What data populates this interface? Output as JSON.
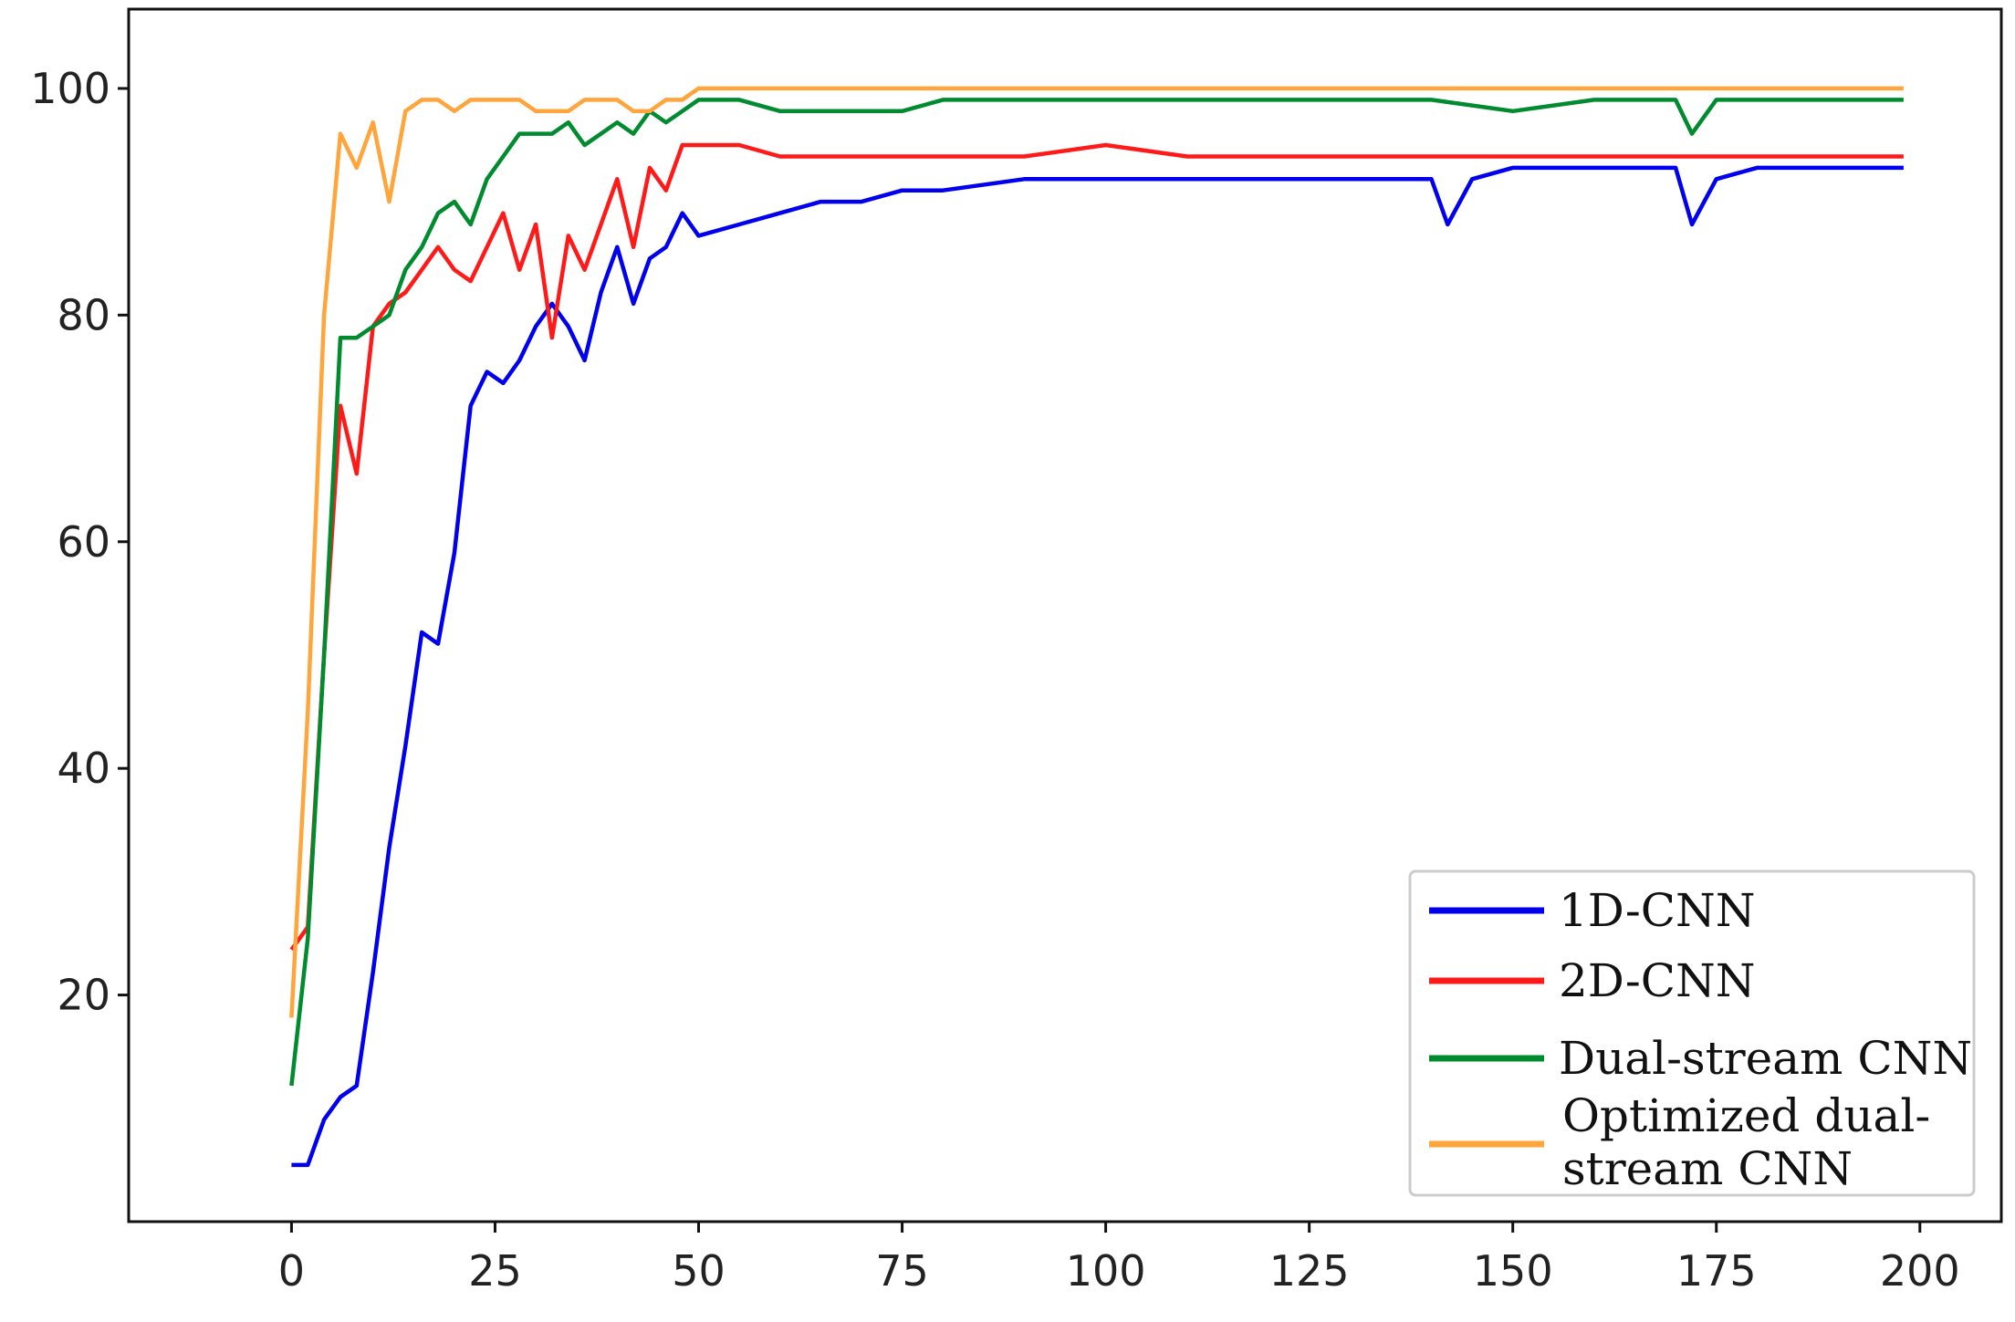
{
  "chart_data": {
    "type": "line",
    "title": "",
    "xlabel": "",
    "ylabel": "",
    "xlim": [
      -20,
      210
    ],
    "ylim": [
      0,
      107
    ],
    "xticks": [
      0,
      25,
      50,
      75,
      100,
      125,
      150,
      175,
      200
    ],
    "yticks": [
      20,
      40,
      60,
      80,
      100
    ],
    "grid": false,
    "legend_position": "lower-right",
    "series": [
      {
        "name": "1D-CNN",
        "color": "#0000ee",
        "x": [
          0,
          2,
          4,
          6,
          8,
          10,
          12,
          14,
          16,
          18,
          20,
          22,
          24,
          26,
          28,
          30,
          32,
          34,
          36,
          38,
          40,
          42,
          44,
          46,
          48,
          50,
          55,
          60,
          65,
          70,
          75,
          80,
          90,
          100,
          110,
          120,
          130,
          140,
          142,
          145,
          150,
          160,
          170,
          172,
          175,
          180,
          190,
          198
        ],
        "y": [
          5,
          5,
          9,
          11,
          12,
          22,
          33,
          42,
          52,
          51,
          59,
          72,
          75,
          74,
          76,
          79,
          81,
          79,
          76,
          82,
          86,
          81,
          85,
          86,
          89,
          87,
          88,
          89,
          90,
          90,
          91,
          91,
          92,
          92,
          92,
          92,
          92,
          92,
          88,
          92,
          93,
          93,
          93,
          88,
          92,
          93,
          93,
          93
        ]
      },
      {
        "name": "2D-CNN",
        "color": "#ff1a1a",
        "x": [
          0,
          2,
          4,
          6,
          8,
          10,
          12,
          14,
          16,
          18,
          20,
          22,
          24,
          26,
          28,
          30,
          32,
          34,
          36,
          38,
          40,
          42,
          44,
          46,
          48,
          50,
          55,
          60,
          65,
          70,
          75,
          80,
          90,
          100,
          110,
          120,
          130,
          140,
          150,
          160,
          170,
          180,
          190,
          198
        ],
        "y": [
          24,
          26,
          50,
          72,
          66,
          79,
          81,
          82,
          84,
          86,
          84,
          83,
          86,
          89,
          84,
          88,
          78,
          87,
          84,
          88,
          92,
          86,
          93,
          91,
          95,
          95,
          95,
          94,
          94,
          94,
          94,
          94,
          94,
          95,
          94,
          94,
          94,
          94,
          94,
          94,
          94,
          94,
          94,
          94
        ]
      },
      {
        "name": "Dual-stream CNN",
        "color": "#008c2e",
        "x": [
          0,
          2,
          4,
          6,
          8,
          10,
          12,
          14,
          16,
          18,
          20,
          22,
          24,
          26,
          28,
          30,
          32,
          34,
          36,
          38,
          40,
          42,
          44,
          46,
          48,
          50,
          55,
          60,
          65,
          70,
          75,
          80,
          90,
          100,
          110,
          120,
          130,
          140,
          150,
          160,
          170,
          172,
          175,
          180,
          190,
          198
        ],
        "y": [
          12,
          25,
          50,
          78,
          78,
          79,
          80,
          84,
          86,
          89,
          90,
          88,
          92,
          94,
          96,
          96,
          96,
          97,
          95,
          96,
          97,
          96,
          98,
          97,
          98,
          99,
          99,
          98,
          98,
          98,
          98,
          99,
          99,
          99,
          99,
          99,
          99,
          99,
          98,
          99,
          99,
          96,
          99,
          99,
          99,
          99
        ]
      },
      {
        "name": "Optimized dual-stream CNN",
        "color": "#ffa53c",
        "x": [
          0,
          2,
          4,
          6,
          8,
          10,
          12,
          14,
          16,
          18,
          20,
          22,
          24,
          26,
          28,
          30,
          32,
          34,
          36,
          38,
          40,
          42,
          44,
          46,
          48,
          50,
          55,
          60,
          65,
          70,
          75,
          80,
          90,
          100,
          110,
          120,
          130,
          140,
          150,
          160,
          170,
          180,
          190,
          198
        ],
        "y": [
          18,
          45,
          80,
          96,
          93,
          97,
          90,
          98,
          99,
          99,
          98,
          99,
          99,
          99,
          99,
          98,
          98,
          98,
          99,
          99,
          99,
          98,
          98,
          99,
          99,
          100,
          100,
          100,
          100,
          100,
          100,
          100,
          100,
          100,
          100,
          100,
          100,
          100,
          100,
          100,
          100,
          100,
          100,
          100
        ]
      }
    ]
  }
}
